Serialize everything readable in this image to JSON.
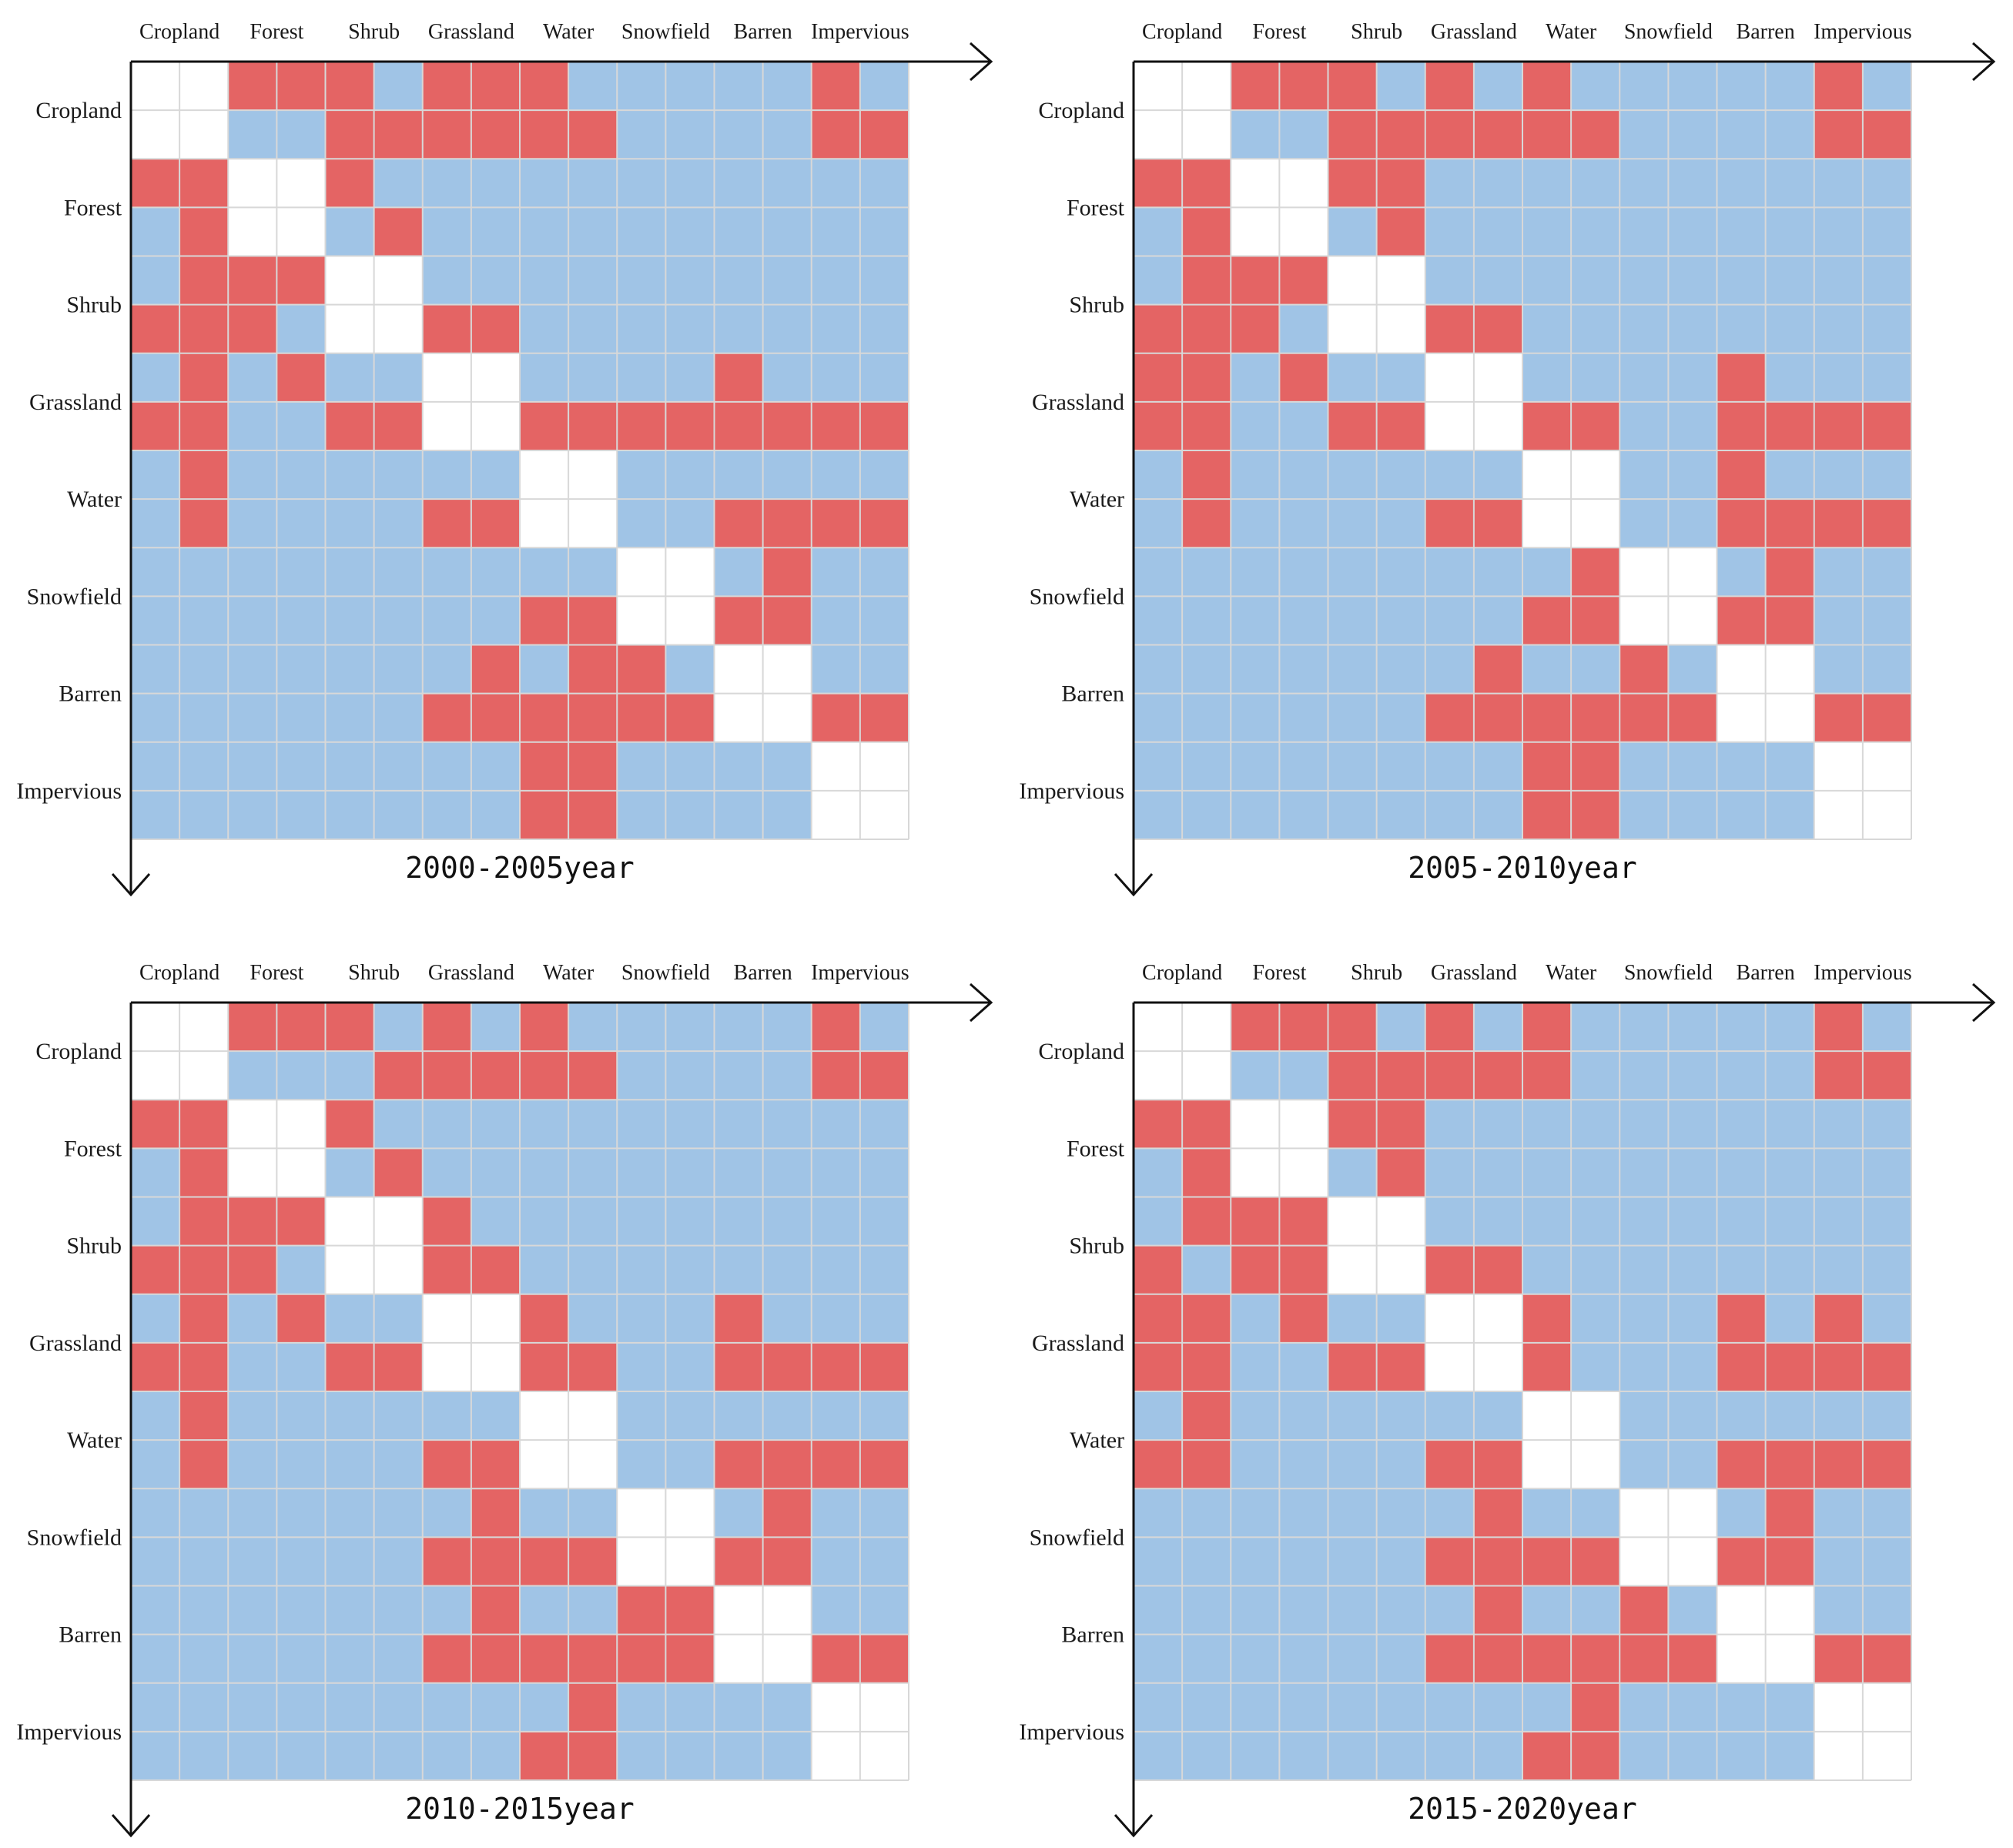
{
  "chart_data": {
    "type": "heatmap",
    "description_legend": {
      "1": "change (red)",
      "0": "no change (blue)",
      "-1": "diagonal (white)"
    },
    "colors": {
      "change": "#e46464",
      "no_change": "#a0c4e6",
      "diagonal": "#ffffff",
      "grid": "#d8d8d8",
      "axis": "#111111"
    },
    "categories": [
      "Cropland",
      "Forest",
      "Shrub",
      "Grassland",
      "Water",
      "Snowfield",
      "Barren",
      "Impervious"
    ],
    "panels": [
      {
        "title": "2000-2005year",
        "matrix": [
          [
            -1,
            -1,
            1,
            1,
            1,
            0,
            1,
            1,
            1,
            0,
            0,
            0,
            0,
            0,
            1,
            0
          ],
          [
            -1,
            -1,
            0,
            0,
            1,
            1,
            1,
            1,
            1,
            1,
            0,
            0,
            0,
            0,
            1,
            1
          ],
          [
            1,
            1,
            -1,
            -1,
            1,
            0,
            0,
            0,
            0,
            0,
            0,
            0,
            0,
            0,
            0,
            0
          ],
          [
            0,
            1,
            -1,
            -1,
            0,
            1,
            0,
            0,
            0,
            0,
            0,
            0,
            0,
            0,
            0,
            0
          ],
          [
            0,
            1,
            1,
            1,
            -1,
            -1,
            0,
            0,
            0,
            0,
            0,
            0,
            0,
            0,
            0,
            0
          ],
          [
            1,
            1,
            1,
            0,
            -1,
            -1,
            1,
            1,
            0,
            0,
            0,
            0,
            0,
            0,
            0,
            0
          ],
          [
            0,
            1,
            0,
            1,
            0,
            0,
            -1,
            -1,
            0,
            0,
            0,
            0,
            1,
            0,
            0,
            0
          ],
          [
            1,
            1,
            0,
            0,
            1,
            1,
            -1,
            -1,
            1,
            1,
            1,
            1,
            1,
            1,
            1,
            1
          ],
          [
            0,
            1,
            0,
            0,
            0,
            0,
            0,
            0,
            -1,
            -1,
            0,
            0,
            0,
            0,
            0,
            0
          ],
          [
            0,
            1,
            0,
            0,
            0,
            0,
            1,
            1,
            -1,
            -1,
            0,
            0,
            1,
            1,
            1,
            1
          ],
          [
            0,
            0,
            0,
            0,
            0,
            0,
            0,
            0,
            0,
            0,
            -1,
            -1,
            0,
            1,
            0,
            0
          ],
          [
            0,
            0,
            0,
            0,
            0,
            0,
            0,
            0,
            1,
            1,
            -1,
            -1,
            1,
            1,
            0,
            0
          ],
          [
            0,
            0,
            0,
            0,
            0,
            0,
            0,
            1,
            0,
            1,
            1,
            0,
            -1,
            -1,
            0,
            0
          ],
          [
            0,
            0,
            0,
            0,
            0,
            0,
            1,
            1,
            1,
            1,
            1,
            1,
            -1,
            -1,
            1,
            1
          ],
          [
            0,
            0,
            0,
            0,
            0,
            0,
            0,
            0,
            1,
            1,
            0,
            0,
            0,
            0,
            -1,
            -1
          ],
          [
            0,
            0,
            0,
            0,
            0,
            0,
            0,
            0,
            1,
            1,
            0,
            0,
            0,
            0,
            -1,
            -1
          ]
        ]
      },
      {
        "title": "2005-2010year",
        "matrix": [
          [
            -1,
            -1,
            1,
            1,
            1,
            0,
            1,
            0,
            1,
            0,
            0,
            0,
            0,
            0,
            1,
            0
          ],
          [
            -1,
            -1,
            0,
            0,
            1,
            1,
            1,
            1,
            1,
            1,
            0,
            0,
            0,
            0,
            1,
            1
          ],
          [
            1,
            1,
            -1,
            -1,
            1,
            1,
            0,
            0,
            0,
            0,
            0,
            0,
            0,
            0,
            0,
            0
          ],
          [
            0,
            1,
            -1,
            -1,
            0,
            1,
            0,
            0,
            0,
            0,
            0,
            0,
            0,
            0,
            0,
            0
          ],
          [
            0,
            1,
            1,
            1,
            -1,
            -1,
            0,
            0,
            0,
            0,
            0,
            0,
            0,
            0,
            0,
            0
          ],
          [
            1,
            1,
            1,
            0,
            -1,
            -1,
            1,
            1,
            0,
            0,
            0,
            0,
            0,
            0,
            0,
            0
          ],
          [
            1,
            1,
            0,
            1,
            0,
            0,
            -1,
            -1,
            0,
            0,
            0,
            0,
            1,
            0,
            0,
            0
          ],
          [
            1,
            1,
            0,
            0,
            1,
            1,
            -1,
            -1,
            1,
            1,
            0,
            0,
            1,
            1,
            1,
            1
          ],
          [
            0,
            1,
            0,
            0,
            0,
            0,
            0,
            0,
            -1,
            -1,
            0,
            0,
            1,
            0,
            0,
            0
          ],
          [
            0,
            1,
            0,
            0,
            0,
            0,
            1,
            1,
            -1,
            -1,
            0,
            0,
            1,
            1,
            1,
            1
          ],
          [
            0,
            0,
            0,
            0,
            0,
            0,
            0,
            0,
            0,
            1,
            -1,
            -1,
            0,
            1,
            0,
            0
          ],
          [
            0,
            0,
            0,
            0,
            0,
            0,
            0,
            0,
            1,
            1,
            -1,
            -1,
            1,
            1,
            0,
            0
          ],
          [
            0,
            0,
            0,
            0,
            0,
            0,
            0,
            1,
            0,
            0,
            1,
            0,
            -1,
            -1,
            0,
            0
          ],
          [
            0,
            0,
            0,
            0,
            0,
            0,
            1,
            1,
            1,
            1,
            1,
            1,
            -1,
            -1,
            1,
            1
          ],
          [
            0,
            0,
            0,
            0,
            0,
            0,
            0,
            0,
            1,
            1,
            0,
            0,
            0,
            0,
            -1,
            -1
          ],
          [
            0,
            0,
            0,
            0,
            0,
            0,
            0,
            0,
            1,
            1,
            0,
            0,
            0,
            0,
            -1,
            -1
          ]
        ]
      },
      {
        "title": "2010-2015year",
        "matrix": [
          [
            -1,
            -1,
            1,
            1,
            1,
            0,
            1,
            0,
            1,
            0,
            0,
            0,
            0,
            0,
            1,
            0
          ],
          [
            -1,
            -1,
            0,
            0,
            0,
            1,
            1,
            1,
            1,
            1,
            0,
            0,
            0,
            0,
            1,
            1
          ],
          [
            1,
            1,
            -1,
            -1,
            1,
            0,
            0,
            0,
            0,
            0,
            0,
            0,
            0,
            0,
            0,
            0
          ],
          [
            0,
            1,
            -1,
            -1,
            0,
            1,
            0,
            0,
            0,
            0,
            0,
            0,
            0,
            0,
            0,
            0
          ],
          [
            0,
            1,
            1,
            1,
            -1,
            -1,
            1,
            0,
            0,
            0,
            0,
            0,
            0,
            0,
            0,
            0
          ],
          [
            1,
            1,
            1,
            0,
            -1,
            -1,
            1,
            1,
            0,
            0,
            0,
            0,
            0,
            0,
            0,
            0
          ],
          [
            0,
            1,
            0,
            1,
            0,
            0,
            -1,
            -1,
            1,
            0,
            0,
            0,
            1,
            0,
            0,
            0
          ],
          [
            1,
            1,
            0,
            0,
            1,
            1,
            -1,
            -1,
            1,
            1,
            0,
            0,
            1,
            1,
            1,
            1
          ],
          [
            0,
            1,
            0,
            0,
            0,
            0,
            0,
            0,
            -1,
            -1,
            0,
            0,
            0,
            0,
            0,
            0
          ],
          [
            0,
            1,
            0,
            0,
            0,
            0,
            1,
            1,
            -1,
            -1,
            0,
            0,
            1,
            1,
            1,
            1
          ],
          [
            0,
            0,
            0,
            0,
            0,
            0,
            0,
            1,
            0,
            0,
            -1,
            -1,
            0,
            1,
            0,
            0
          ],
          [
            0,
            0,
            0,
            0,
            0,
            0,
            1,
            1,
            1,
            1,
            -1,
            -1,
            1,
            1,
            0,
            0
          ],
          [
            0,
            0,
            0,
            0,
            0,
            0,
            0,
            1,
            0,
            0,
            1,
            1,
            -1,
            -1,
            0,
            0
          ],
          [
            0,
            0,
            0,
            0,
            0,
            0,
            1,
            1,
            1,
            1,
            1,
            1,
            -1,
            -1,
            1,
            1
          ],
          [
            0,
            0,
            0,
            0,
            0,
            0,
            0,
            0,
            0,
            1,
            0,
            0,
            0,
            0,
            -1,
            -1
          ],
          [
            0,
            0,
            0,
            0,
            0,
            0,
            0,
            0,
            1,
            1,
            0,
            0,
            0,
            0,
            -1,
            -1
          ]
        ]
      },
      {
        "title": "2015-2020year",
        "matrix": [
          [
            -1,
            -1,
            1,
            1,
            1,
            0,
            1,
            0,
            1,
            0,
            0,
            0,
            0,
            0,
            1,
            0
          ],
          [
            -1,
            -1,
            0,
            0,
            1,
            1,
            1,
            1,
            1,
            0,
            0,
            0,
            0,
            0,
            1,
            1
          ],
          [
            1,
            1,
            -1,
            -1,
            1,
            1,
            0,
            0,
            0,
            0,
            0,
            0,
            0,
            0,
            0,
            0
          ],
          [
            0,
            1,
            -1,
            -1,
            0,
            1,
            0,
            0,
            0,
            0,
            0,
            0,
            0,
            0,
            0,
            0
          ],
          [
            0,
            1,
            1,
            1,
            -1,
            -1,
            0,
            0,
            0,
            0,
            0,
            0,
            0,
            0,
            0,
            0
          ],
          [
            1,
            0,
            1,
            1,
            -1,
            -1,
            1,
            1,
            0,
            0,
            0,
            0,
            0,
            0,
            0,
            0
          ],
          [
            1,
            1,
            0,
            1,
            0,
            0,
            -1,
            -1,
            1,
            0,
            0,
            0,
            1,
            0,
            1,
            0
          ],
          [
            1,
            1,
            0,
            0,
            1,
            1,
            -1,
            -1,
            1,
            0,
            0,
            0,
            1,
            1,
            1,
            1
          ],
          [
            0,
            1,
            0,
            0,
            0,
            0,
            0,
            0,
            -1,
            -1,
            0,
            0,
            0,
            0,
            0,
            0
          ],
          [
            1,
            1,
            0,
            0,
            0,
            0,
            1,
            1,
            -1,
            -1,
            0,
            0,
            1,
            1,
            1,
            1
          ],
          [
            0,
            0,
            0,
            0,
            0,
            0,
            0,
            1,
            0,
            0,
            -1,
            -1,
            0,
            1,
            0,
            0
          ],
          [
            0,
            0,
            0,
            0,
            0,
            0,
            1,
            1,
            1,
            1,
            -1,
            -1,
            1,
            1,
            0,
            0
          ],
          [
            0,
            0,
            0,
            0,
            0,
            0,
            0,
            1,
            0,
            0,
            1,
            0,
            -1,
            -1,
            0,
            0
          ],
          [
            0,
            0,
            0,
            0,
            0,
            0,
            1,
            1,
            1,
            1,
            1,
            1,
            -1,
            -1,
            1,
            1
          ],
          [
            0,
            0,
            0,
            0,
            0,
            0,
            0,
            0,
            0,
            1,
            0,
            0,
            0,
            0,
            -1,
            -1
          ],
          [
            0,
            0,
            0,
            0,
            0,
            0,
            0,
            0,
            1,
            1,
            0,
            0,
            0,
            0,
            -1,
            -1
          ]
        ]
      }
    ]
  }
}
